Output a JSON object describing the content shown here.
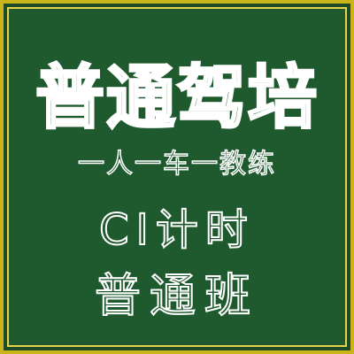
{
  "poster": {
    "title": "普通驾培",
    "slogan": "一人一车一教练",
    "course_name": "CI计时",
    "class_name": "普通班"
  },
  "colors": {
    "board_green": "#1f5a2e",
    "frame_gold": "#c9b51a",
    "text_outline": "#ffffff"
  }
}
